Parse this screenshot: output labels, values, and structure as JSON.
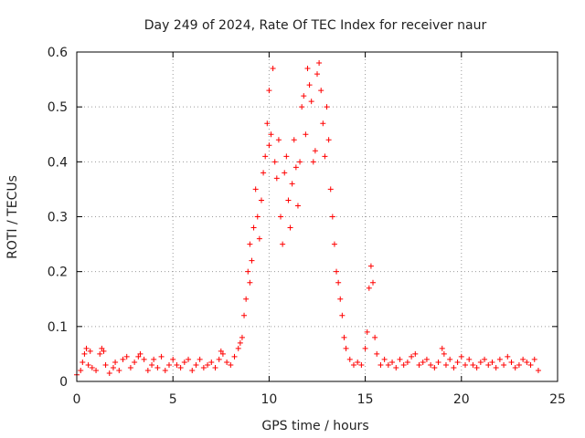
{
  "chart_data": {
    "type": "scatter",
    "title": "Day 249 of 2024, Rate Of TEC Index for receiver naur",
    "xlabel": "GPS time / hours",
    "ylabel": "ROTI / TECUs",
    "xlim": [
      0,
      25
    ],
    "ylim": [
      0,
      0.6
    ],
    "x_ticks": [
      0,
      5,
      10,
      15,
      20,
      25
    ],
    "x_tick_labels": [
      "0",
      "5",
      "10",
      "15",
      "20",
      "25"
    ],
    "y_ticks": [
      0,
      0.1,
      0.2,
      0.3,
      0.4,
      0.5,
      0.6
    ],
    "y_tick_labels": [
      "0",
      "0.1",
      "0.2",
      "0.3",
      "0.4",
      "0.5",
      "0.6"
    ],
    "grid": true,
    "marker": "+",
    "color": "#ff0000",
    "series": [
      {
        "name": "ROTI",
        "points": [
          [
            0.0,
            0.012
          ],
          [
            0.2,
            0.02
          ],
          [
            0.3,
            0.035
          ],
          [
            0.4,
            0.05
          ],
          [
            0.5,
            0.06
          ],
          [
            0.6,
            0.03
          ],
          [
            0.7,
            0.055
          ],
          [
            0.8,
            0.025
          ],
          [
            1.0,
            0.02
          ],
          [
            1.2,
            0.05
          ],
          [
            1.3,
            0.06
          ],
          [
            1.4,
            0.055
          ],
          [
            1.5,
            0.03
          ],
          [
            1.7,
            0.015
          ],
          [
            1.9,
            0.025
          ],
          [
            2.0,
            0.035
          ],
          [
            2.2,
            0.02
          ],
          [
            2.4,
            0.04
          ],
          [
            2.6,
            0.045
          ],
          [
            2.8,
            0.025
          ],
          [
            3.0,
            0.035
          ],
          [
            3.2,
            0.045
          ],
          [
            3.3,
            0.05
          ],
          [
            3.5,
            0.04
          ],
          [
            3.7,
            0.02
          ],
          [
            3.9,
            0.03
          ],
          [
            4.0,
            0.04
          ],
          [
            4.2,
            0.025
          ],
          [
            4.4,
            0.045
          ],
          [
            4.6,
            0.02
          ],
          [
            4.8,
            0.03
          ],
          [
            5.0,
            0.04
          ],
          [
            5.2,
            0.03
          ],
          [
            5.4,
            0.025
          ],
          [
            5.6,
            0.035
          ],
          [
            5.8,
            0.04
          ],
          [
            6.0,
            0.02
          ],
          [
            6.2,
            0.03
          ],
          [
            6.4,
            0.04
          ],
          [
            6.6,
            0.025
          ],
          [
            6.8,
            0.03
          ],
          [
            7.0,
            0.035
          ],
          [
            7.2,
            0.025
          ],
          [
            7.4,
            0.04
          ],
          [
            7.5,
            0.055
          ],
          [
            7.6,
            0.05
          ],
          [
            7.8,
            0.035
          ],
          [
            8.0,
            0.03
          ],
          [
            8.2,
            0.045
          ],
          [
            8.4,
            0.06
          ],
          [
            8.5,
            0.07
          ],
          [
            8.6,
            0.08
          ],
          [
            8.7,
            0.12
          ],
          [
            8.8,
            0.15
          ],
          [
            8.9,
            0.2
          ],
          [
            9.0,
            0.25
          ],
          [
            9.0,
            0.18
          ],
          [
            9.1,
            0.22
          ],
          [
            9.2,
            0.28
          ],
          [
            9.3,
            0.35
          ],
          [
            9.4,
            0.3
          ],
          [
            9.5,
            0.26
          ],
          [
            9.6,
            0.33
          ],
          [
            9.7,
            0.38
          ],
          [
            9.8,
            0.41
          ],
          [
            9.9,
            0.47
          ],
          [
            10.0,
            0.43
          ],
          [
            10.1,
            0.45
          ],
          [
            10.2,
            0.57
          ],
          [
            10.0,
            0.53
          ],
          [
            10.3,
            0.4
          ],
          [
            10.4,
            0.37
          ],
          [
            10.5,
            0.44
          ],
          [
            10.6,
            0.3
          ],
          [
            10.7,
            0.25
          ],
          [
            10.8,
            0.38
          ],
          [
            10.9,
            0.41
          ],
          [
            11.0,
            0.33
          ],
          [
            11.1,
            0.28
          ],
          [
            11.2,
            0.36
          ],
          [
            11.3,
            0.44
          ],
          [
            11.4,
            0.39
          ],
          [
            11.5,
            0.32
          ],
          [
            11.6,
            0.4
          ],
          [
            11.7,
            0.5
          ],
          [
            11.8,
            0.52
          ],
          [
            11.9,
            0.45
          ],
          [
            12.0,
            0.57
          ],
          [
            12.1,
            0.54
          ],
          [
            12.2,
            0.51
          ],
          [
            12.3,
            0.4
          ],
          [
            12.4,
            0.42
          ],
          [
            12.5,
            0.56
          ],
          [
            12.6,
            0.58
          ],
          [
            12.7,
            0.53
          ],
          [
            12.8,
            0.47
          ],
          [
            12.9,
            0.41
          ],
          [
            13.0,
            0.5
          ],
          [
            13.1,
            0.44
          ],
          [
            13.2,
            0.35
          ],
          [
            13.3,
            0.3
          ],
          [
            13.4,
            0.25
          ],
          [
            13.5,
            0.2
          ],
          [
            13.6,
            0.18
          ],
          [
            13.7,
            0.15
          ],
          [
            13.8,
            0.12
          ],
          [
            13.9,
            0.08
          ],
          [
            14.0,
            0.06
          ],
          [
            14.2,
            0.04
          ],
          [
            14.4,
            0.03
          ],
          [
            14.6,
            0.035
          ],
          [
            14.8,
            0.03
          ],
          [
            15.0,
            0.06
          ],
          [
            15.1,
            0.09
          ],
          [
            15.2,
            0.17
          ],
          [
            15.3,
            0.21
          ],
          [
            15.4,
            0.18
          ],
          [
            15.5,
            0.08
          ],
          [
            15.6,
            0.05
          ],
          [
            15.8,
            0.03
          ],
          [
            16.0,
            0.04
          ],
          [
            16.2,
            0.03
          ],
          [
            16.4,
            0.035
          ],
          [
            16.6,
            0.025
          ],
          [
            16.8,
            0.04
          ],
          [
            17.0,
            0.03
          ],
          [
            17.2,
            0.035
          ],
          [
            17.4,
            0.045
          ],
          [
            17.6,
            0.05
          ],
          [
            17.8,
            0.03
          ],
          [
            18.0,
            0.035
          ],
          [
            18.2,
            0.04
          ],
          [
            18.4,
            0.03
          ],
          [
            18.6,
            0.025
          ],
          [
            18.8,
            0.035
          ],
          [
            19.0,
            0.06
          ],
          [
            19.1,
            0.05
          ],
          [
            19.2,
            0.03
          ],
          [
            19.4,
            0.04
          ],
          [
            19.6,
            0.025
          ],
          [
            19.8,
            0.035
          ],
          [
            20.0,
            0.045
          ],
          [
            20.2,
            0.03
          ],
          [
            20.4,
            0.04
          ],
          [
            20.6,
            0.03
          ],
          [
            20.8,
            0.025
          ],
          [
            21.0,
            0.035
          ],
          [
            21.2,
            0.04
          ],
          [
            21.4,
            0.03
          ],
          [
            21.6,
            0.035
          ],
          [
            21.8,
            0.025
          ],
          [
            22.0,
            0.04
          ],
          [
            22.2,
            0.03
          ],
          [
            22.4,
            0.045
          ],
          [
            22.6,
            0.035
          ],
          [
            22.8,
            0.025
          ],
          [
            23.0,
            0.03
          ],
          [
            23.2,
            0.04
          ],
          [
            23.4,
            0.035
          ],
          [
            23.6,
            0.03
          ],
          [
            23.8,
            0.04
          ],
          [
            24.0,
            0.02
          ]
        ]
      }
    ]
  }
}
